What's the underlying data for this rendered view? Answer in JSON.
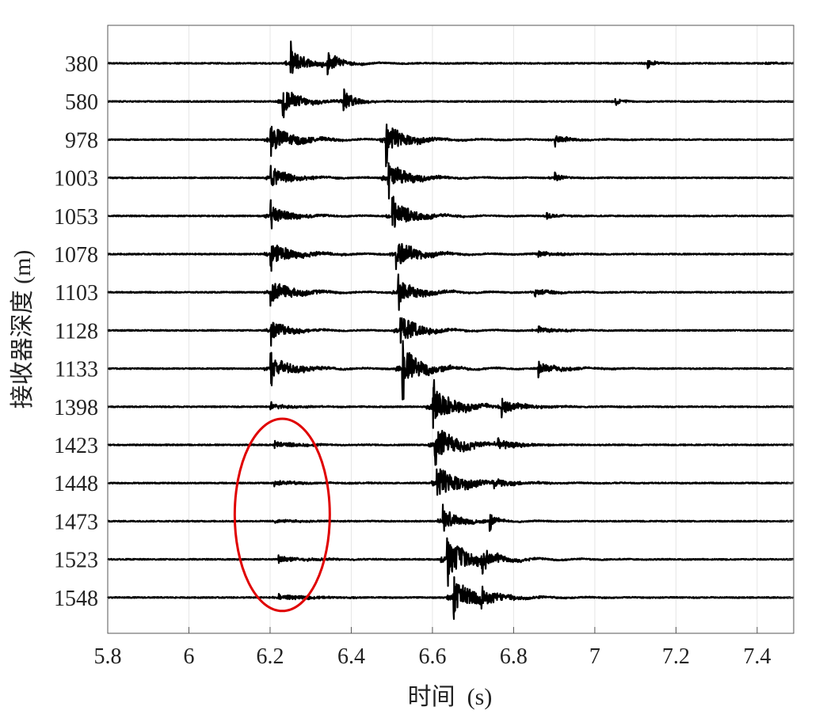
{
  "chart_data": {
    "type": "line",
    "title": "",
    "xlabel": "时间  (s)",
    "ylabel": "接收器深度 (m)",
    "xlim": [
      5.8,
      7.49
    ],
    "xticks": [
      "5.8",
      "6",
      "6.2",
      "6.4",
      "6.6",
      "6.8",
      "7",
      "7.2",
      "7.4"
    ],
    "grid": true,
    "line_color": "#000000",
    "grid_color": "#e6e6e6",
    "annotation_color": "#e00000",
    "annotation_shape": "ellipse",
    "annotation_traces": [
      "1423",
      "1448",
      "1473",
      "1523",
      "1548"
    ],
    "annotation_time": 6.23,
    "traces": [
      {
        "depth": "380",
        "events": [
          [
            6.25,
            1.2,
            0.04
          ],
          [
            6.34,
            1.0,
            0.03
          ],
          [
            7.13,
            0.3,
            0.02
          ],
          [
            7.42,
            0.1,
            0.03
          ]
        ]
      },
      {
        "depth": "580",
        "events": [
          [
            6.23,
            1.1,
            0.05
          ],
          [
            6.38,
            0.9,
            0.03
          ],
          [
            7.05,
            0.3,
            0.02
          ]
        ]
      },
      {
        "depth": "978",
        "events": [
          [
            6.2,
            1.2,
            0.06
          ],
          [
            6.485,
            1.4,
            0.05
          ],
          [
            6.9,
            0.4,
            0.04
          ]
        ]
      },
      {
        "depth": "1003",
        "events": [
          [
            6.2,
            1.0,
            0.05
          ],
          [
            6.49,
            1.3,
            0.05
          ],
          [
            6.9,
            0.4,
            0.02
          ]
        ]
      },
      {
        "depth": "1053",
        "events": [
          [
            6.2,
            0.9,
            0.05
          ],
          [
            6.5,
            1.3,
            0.05
          ],
          [
            6.88,
            0.25,
            0.03
          ]
        ]
      },
      {
        "depth": "1078",
        "events": [
          [
            6.2,
            1.0,
            0.06
          ],
          [
            6.51,
            1.3,
            0.05
          ],
          [
            6.86,
            0.25,
            0.05
          ]
        ]
      },
      {
        "depth": "1103",
        "events": [
          [
            6.2,
            1.0,
            0.06
          ],
          [
            6.515,
            1.2,
            0.05
          ],
          [
            6.85,
            0.3,
            0.05
          ]
        ]
      },
      {
        "depth": "1128",
        "events": [
          [
            6.2,
            0.9,
            0.05
          ],
          [
            6.52,
            1.3,
            0.05
          ],
          [
            6.86,
            0.3,
            0.05
          ]
        ]
      },
      {
        "depth": "1133",
        "events": [
          [
            6.2,
            1.0,
            0.06
          ],
          [
            6.525,
            1.8,
            0.05
          ],
          [
            6.86,
            0.5,
            0.06
          ]
        ]
      },
      {
        "depth": "1398",
        "events": [
          [
            6.2,
            0.25,
            0.06
          ],
          [
            6.6,
            1.6,
            0.06
          ],
          [
            6.77,
            0.5,
            0.06
          ]
        ]
      },
      {
        "depth": "1423",
        "events": [
          [
            6.21,
            0.25,
            0.08
          ],
          [
            6.605,
            1.6,
            0.06
          ],
          [
            6.76,
            0.5,
            0.05
          ]
        ]
      },
      {
        "depth": "1448",
        "events": [
          [
            6.21,
            0.2,
            0.08
          ],
          [
            6.61,
            1.5,
            0.06
          ],
          [
            6.75,
            0.35,
            0.06
          ]
        ]
      },
      {
        "depth": "1473",
        "events": [
          [
            6.21,
            0.12,
            0.08
          ],
          [
            6.625,
            1.1,
            0.04
          ],
          [
            6.74,
            0.6,
            0.02
          ]
        ]
      },
      {
        "depth": "1523",
        "events": [
          [
            6.22,
            0.25,
            0.08
          ],
          [
            6.635,
            1.9,
            0.05
          ],
          [
            6.72,
            0.8,
            0.05
          ]
        ]
      },
      {
        "depth": "1548",
        "events": [
          [
            6.22,
            0.25,
            0.08
          ],
          [
            6.65,
            1.5,
            0.06
          ],
          [
            6.72,
            0.6,
            0.05
          ]
        ]
      }
    ]
  }
}
